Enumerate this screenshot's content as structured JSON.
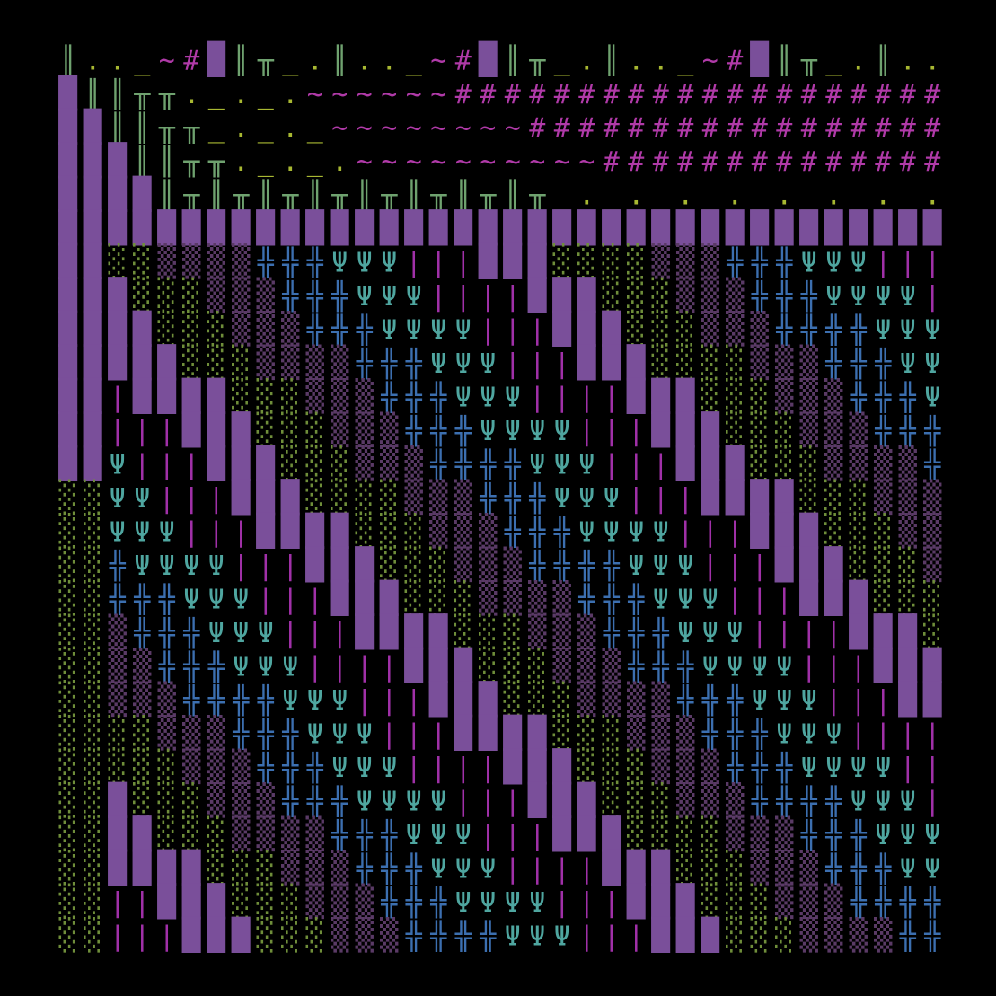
{
  "background": "#000000",
  "glyph_order": [
    "block",
    "sparse",
    "shade",
    "cross",
    "fork",
    "bar",
    "hash",
    "tee",
    "pipe",
    "tilde",
    "dots",
    "underscore"
  ],
  "glyphs": {
    "block": {
      "char": "█",
      "color": "#7a4f9a",
      "icon": "purple-solid-block"
    },
    "sparse": {
      "char": "░",
      "color": "#6f8e3a",
      "icon": "green-dotted-block"
    },
    "shade": {
      "char": "▒",
      "color": "#5a3a66",
      "icon": "dark-purple-shade-block"
    },
    "cross": {
      "char": "╬",
      "color": "#3c6fb0",
      "icon": "blue-cross-glyph"
    },
    "fork": {
      "char": "Ψ",
      "color": "#4fa6a0",
      "icon": "teal-fork-glyph"
    },
    "bar": {
      "char": "|",
      "color": "#a030a8",
      "icon": "magenta-bar-glyph"
    },
    "hash": {
      "char": "#",
      "color": "#b03aa8",
      "icon": "magenta-hash-glyph"
    },
    "tee": {
      "char": "╥",
      "color": "#6fa26f",
      "icon": "green-tee-glyph"
    },
    "pipe": {
      "char": "║",
      "color": "#6fa26f",
      "icon": "green-double-pipe-glyph"
    },
    "tilde": {
      "char": "~",
      "color": "#b03aa8",
      "icon": "magenta-tilde-glyph"
    },
    "dots": {
      "char": ".",
      "color": "#a8b832",
      "icon": "yellow-dot-glyph"
    },
    "underscore": {
      "char": "_",
      "color": "#a8b832",
      "icon": "yellow-underscore-glyph"
    }
  }
}
